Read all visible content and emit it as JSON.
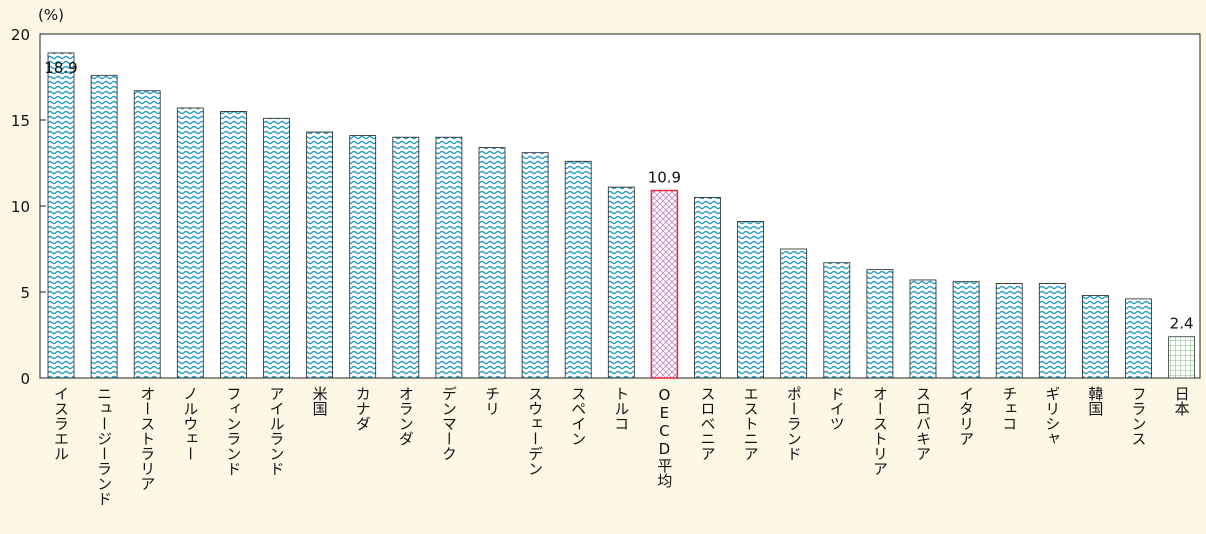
{
  "chart_data": {
    "type": "bar",
    "y_unit": "(%)",
    "categories": [
      "イスラエル",
      "ニュージーランド",
      "オーストラリア",
      "ノルウェー",
      "フィンランド",
      "アイルランド",
      "米国",
      "カナダ",
      "オランダ",
      "デンマーク",
      "チリ",
      "スウェーデン",
      "スペイン",
      "トルコ",
      "OECD平均",
      "スロベニア",
      "エストニア",
      "ポーランド",
      "ドイツ",
      "オーストリア",
      "スロバキア",
      "イタリア",
      "チェコ",
      "ギリシャ",
      "韓国",
      "フランス",
      "日本"
    ],
    "values": [
      18.9,
      17.6,
      16.7,
      15.7,
      15.5,
      15.1,
      14.3,
      14.1,
      14.0,
      14.0,
      13.4,
      13.1,
      12.6,
      11.1,
      10.9,
      10.5,
      9.1,
      7.5,
      6.7,
      6.3,
      5.7,
      5.6,
      5.5,
      5.5,
      4.8,
      4.6,
      2.4
    ],
    "value_labels": [
      "18.9",
      null,
      null,
      null,
      null,
      null,
      null,
      null,
      null,
      null,
      null,
      null,
      null,
      null,
      "10.9",
      null,
      null,
      null,
      null,
      null,
      null,
      null,
      null,
      null,
      null,
      null,
      "2.4"
    ],
    "patterns": [
      "wave",
      "wave",
      "wave",
      "wave",
      "wave",
      "wave",
      "wave",
      "wave",
      "wave",
      "wave",
      "wave",
      "wave",
      "wave",
      "wave",
      "cross",
      "wave",
      "wave",
      "wave",
      "wave",
      "wave",
      "wave",
      "wave",
      "wave",
      "wave",
      "wave",
      "wave",
      "grid"
    ],
    "pattern_colors": {
      "wave": "#2a9ec4",
      "cross": "#c889c8",
      "grid": "#7cc07c"
    },
    "outline_colors": {
      "wave": "#222222",
      "cross": "#e8283c",
      "grid": "#333333"
    },
    "ylim": [
      0,
      20
    ],
    "yticks": [
      0,
      5,
      10,
      15,
      20
    ],
    "grid": false
  }
}
